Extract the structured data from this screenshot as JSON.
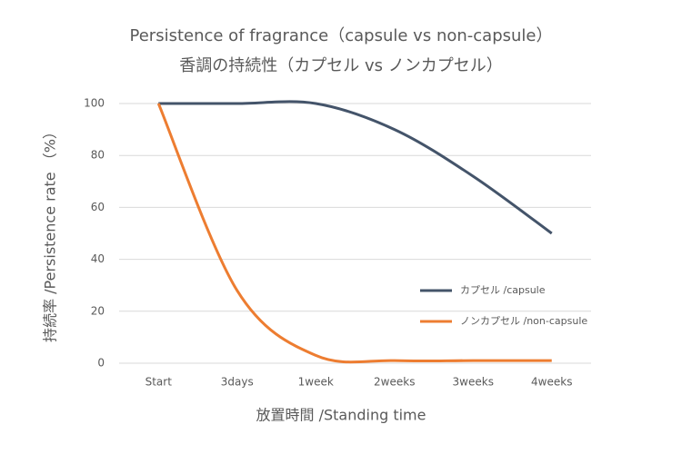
{
  "chart_data": {
    "type": "line",
    "title": "Persistence of fragrance（capsule vs non-capsule）",
    "subtitle": "香調の持続性（カプセル vs ノンカプセル）",
    "x_label": "放置時間 /Standing time",
    "y_label": "持続率 /Persistence rate （%）",
    "categories": [
      "Start",
      "3days",
      "1week",
      "2weeks",
      "3weeks",
      "4weeks"
    ],
    "series": [
      {
        "name": "カプセル /capsule",
        "color": "#44546a",
        "values": [
          100,
          100,
          100,
          90,
          72,
          50
        ]
      },
      {
        "name": "ノンカプセル /non-capsule",
        "color": "#ed7d31",
        "values": [
          100,
          28,
          3,
          1,
          1,
          1
        ]
      }
    ],
    "ylim": [
      0,
      100
    ],
    "yticks": [
      0,
      20,
      40,
      60,
      80,
      100
    ],
    "grid": true,
    "smooth": true,
    "legend": "right"
  }
}
